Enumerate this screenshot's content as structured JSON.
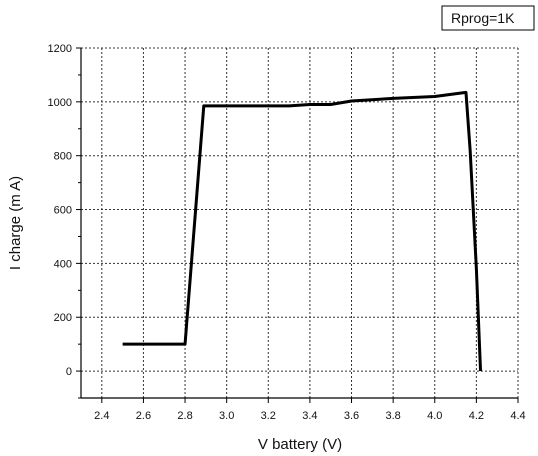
{
  "chart_data": {
    "type": "line",
    "xlabel": "V battery (V)",
    "ylabel": "I charge (m A)",
    "xlim": [
      2.3,
      4.4
    ],
    "ylim": [
      -100,
      1200
    ],
    "x_ticks": [
      "2.4",
      "2.6",
      "2.8",
      "3.0",
      "3.2",
      "3.4",
      "3.6",
      "3.8",
      "4.0",
      "4.2",
      "4.4"
    ],
    "y_ticks": [
      "0",
      "200",
      "400",
      "600",
      "800",
      "1000",
      "1200"
    ],
    "grid": true,
    "legend_position": "top-right",
    "annotation": "Rprog=1K",
    "series": [
      {
        "color": "#000000",
        "points": [
          [
            2.5,
            100
          ],
          [
            2.8,
            100
          ],
          [
            2.89,
            985
          ],
          [
            3.1,
            985
          ],
          [
            3.3,
            985
          ],
          [
            3.4,
            990
          ],
          [
            3.5,
            990
          ],
          [
            3.6,
            1003
          ],
          [
            3.8,
            1013
          ],
          [
            4.0,
            1020
          ],
          [
            4.15,
            1035
          ],
          [
            4.17,
            820
          ],
          [
            4.2,
            380
          ],
          [
            4.22,
            0
          ]
        ]
      }
    ]
  }
}
